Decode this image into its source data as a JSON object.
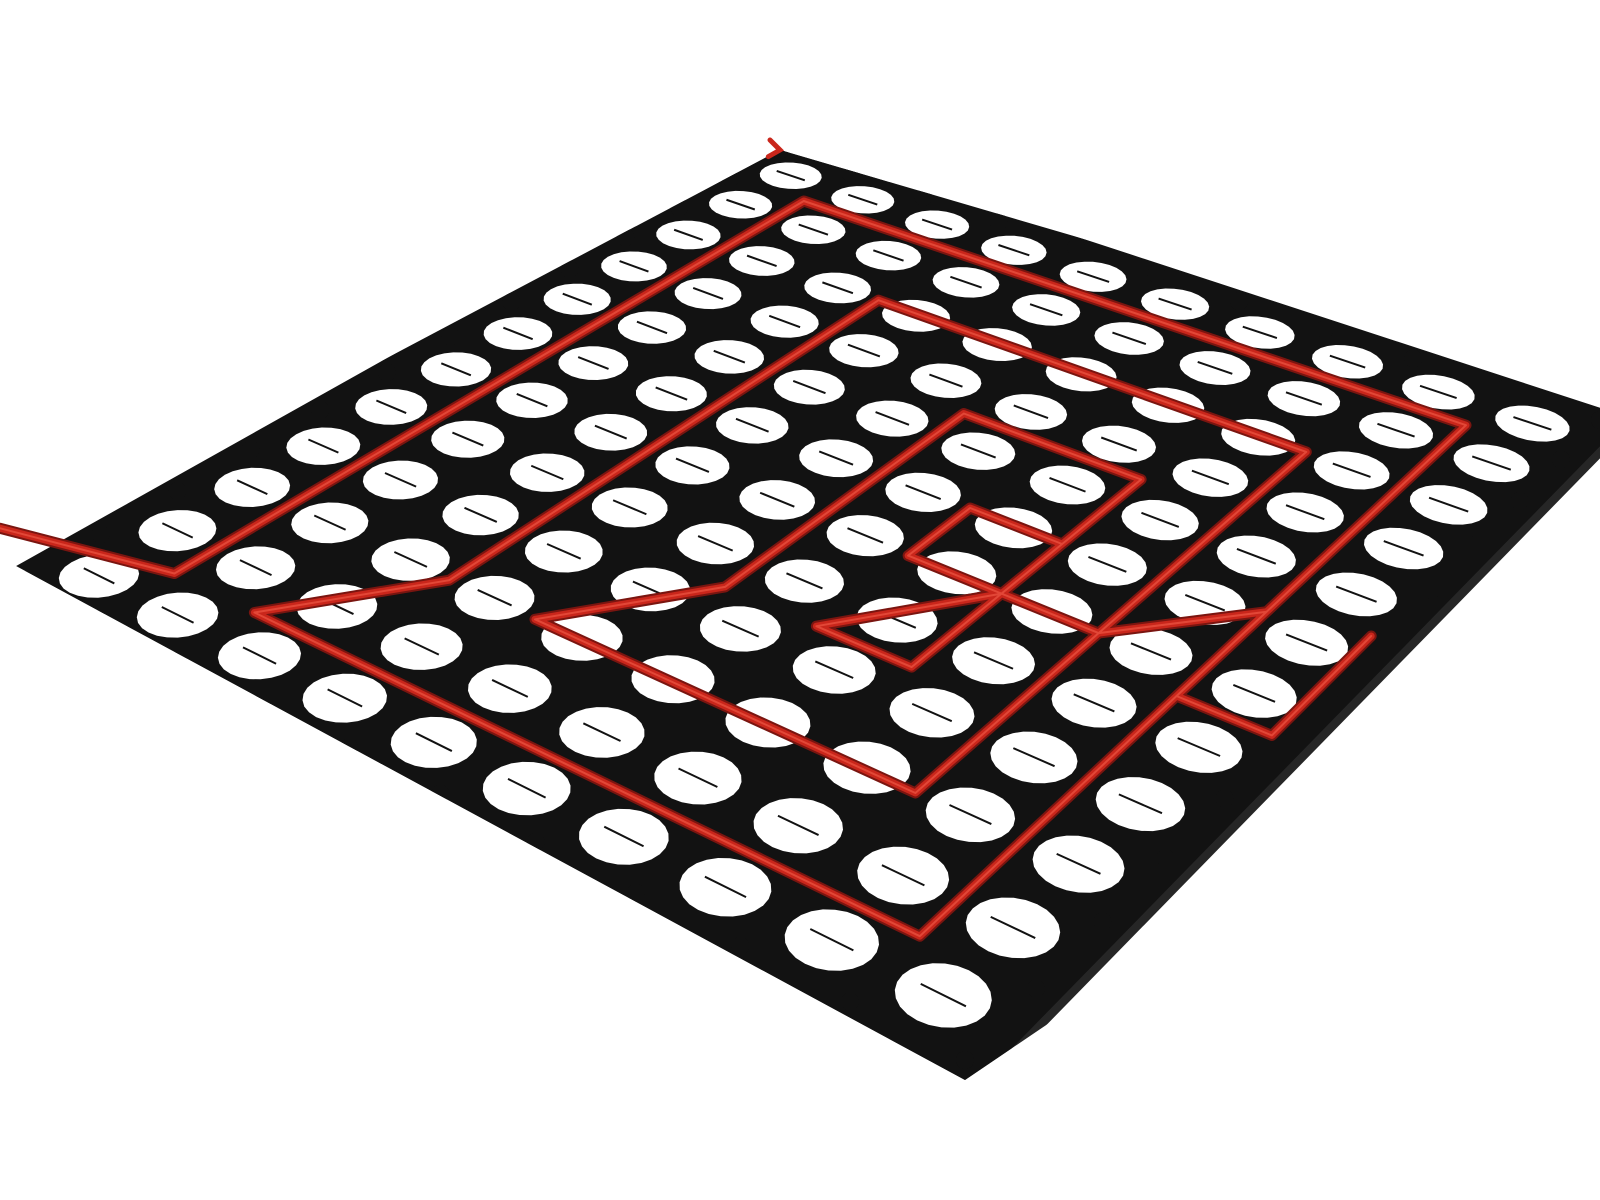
{
  "scene": {
    "subject": "underfloor-heating-panel",
    "grid_cols": 10,
    "grid_rows": 12,
    "spiral_loops": 4
  },
  "colors": {
    "background": "#ffffff",
    "panel": "#121212",
    "panel_shadow": "#000000",
    "hole": "#ffffff",
    "pipe": "#c9261b",
    "pipe_highlight": "#e8503f",
    "pipe_dark": "#7a1510"
  }
}
